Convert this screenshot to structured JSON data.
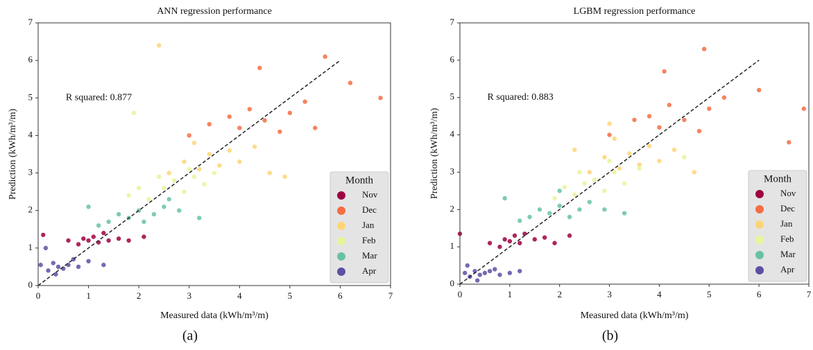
{
  "chart_data": [
    {
      "type": "scatter",
      "title": "ANN regression performance",
      "xlabel": "Measured data (kWh/m³/m)",
      "ylabel": "Prediction (kWh/m³/m)",
      "annotation": "R squared: 0.877",
      "legend_title": "Month",
      "caption": "(a)",
      "legend": "lower right",
      "xlim": [
        0,
        7
      ],
      "ylim": [
        0,
        7
      ],
      "xticks": [
        0,
        1,
        2,
        3,
        4,
        5,
        6,
        7
      ],
      "yticks": [
        0,
        1,
        2,
        3,
        4,
        5,
        6,
        7
      ],
      "reference_line": {
        "x": [
          0,
          6
        ],
        "y": [
          0,
          6
        ]
      },
      "series": [
        {
          "name": "Nov",
          "color": "#9e0142",
          "x": [
            0.6,
            0.8,
            0.9,
            1.0,
            1.1,
            1.2,
            1.3,
            1.4,
            1.6,
            1.8,
            2.1,
            0.1
          ],
          "y": [
            1.2,
            1.1,
            1.25,
            1.2,
            1.3,
            1.15,
            1.4,
            1.2,
            1.25,
            1.2,
            1.3,
            1.35
          ]
        },
        {
          "name": "Dec",
          "color": "#f46d43",
          "x": [
            3.0,
            3.4,
            3.8,
            4.0,
            4.2,
            4.5,
            4.8,
            5.0,
            5.3,
            5.7,
            6.2,
            6.8,
            4.4,
            5.5
          ],
          "y": [
            4.0,
            4.3,
            4.5,
            4.2,
            4.7,
            4.4,
            4.1,
            4.6,
            4.9,
            6.1,
            5.4,
            5.0,
            5.8,
            4.2
          ]
        },
        {
          "name": "Jan",
          "color": "#fdd576",
          "x": [
            2.6,
            2.9,
            3.2,
            3.4,
            3.6,
            3.8,
            4.0,
            4.3,
            4.6,
            3.1,
            4.9,
            2.4
          ],
          "y": [
            3.0,
            3.3,
            3.1,
            3.5,
            3.2,
            3.6,
            3.3,
            3.7,
            3.0,
            3.8,
            2.9,
            6.4
          ]
        },
        {
          "name": "Feb",
          "color": "#e6f598",
          "x": [
            1.8,
            2.0,
            2.2,
            2.5,
            2.7,
            2.9,
            3.1,
            3.3,
            3.5,
            2.4,
            3.0,
            1.9
          ],
          "y": [
            2.4,
            2.6,
            2.3,
            2.6,
            2.8,
            2.5,
            2.9,
            2.7,
            3.0,
            2.9,
            3.1,
            4.6
          ]
        },
        {
          "name": "Mar",
          "color": "#66c2a5",
          "x": [
            1.2,
            1.4,
            1.6,
            1.8,
            2.0,
            2.1,
            2.3,
            2.5,
            2.8,
            3.2,
            1.0,
            2.6
          ],
          "y": [
            1.6,
            1.7,
            1.9,
            1.8,
            2.0,
            1.7,
            1.9,
            2.1,
            2.0,
            1.8,
            2.1,
            2.3
          ]
        },
        {
          "name": "Apr",
          "color": "#5e4fa2",
          "x": [
            0.05,
            0.2,
            0.3,
            0.4,
            0.5,
            0.6,
            0.7,
            0.8,
            1.0,
            1.3,
            0.15,
            0.35
          ],
          "y": [
            0.55,
            0.4,
            0.6,
            0.5,
            0.45,
            0.55,
            0.7,
            0.5,
            0.65,
            0.55,
            1.0,
            0.3
          ]
        }
      ]
    },
    {
      "type": "scatter",
      "title": "LGBM regression performance",
      "xlabel": "Measured data (kWh/m³/m)",
      "ylabel": "Prediction (kWh/m³/m)",
      "annotation": "R squared: 0.883",
      "legend_title": "Month",
      "caption": "(b)",
      "legend": "lower right",
      "xlim": [
        0,
        7
      ],
      "ylim": [
        0,
        7
      ],
      "xticks": [
        0,
        1,
        2,
        3,
        4,
        5,
        6,
        7
      ],
      "yticks": [
        0,
        1,
        2,
        3,
        4,
        5,
        6,
        7
      ],
      "reference_line": {
        "x": [
          0,
          6
        ],
        "y": [
          0,
          6
        ]
      },
      "series": [
        {
          "name": "Nov",
          "color": "#9e0142",
          "x": [
            0.6,
            0.8,
            0.9,
            1.0,
            1.1,
            1.2,
            1.3,
            1.5,
            1.7,
            1.9,
            2.2,
            0.0
          ],
          "y": [
            1.1,
            1.0,
            1.2,
            1.15,
            1.3,
            1.1,
            1.35,
            1.2,
            1.25,
            1.1,
            1.3,
            1.35
          ]
        },
        {
          "name": "Dec",
          "color": "#f46d43",
          "x": [
            3.0,
            3.5,
            3.8,
            4.0,
            4.2,
            4.5,
            4.8,
            5.0,
            5.3,
            4.9,
            6.0,
            6.9,
            4.1,
            6.6
          ],
          "y": [
            4.0,
            4.4,
            4.5,
            4.2,
            4.8,
            4.4,
            4.1,
            4.7,
            5.0,
            6.3,
            5.2,
            4.7,
            5.7,
            3.8
          ]
        },
        {
          "name": "Jan",
          "color": "#fdd576",
          "x": [
            2.6,
            2.9,
            3.2,
            3.4,
            3.6,
            3.8,
            4.0,
            4.3,
            4.7,
            3.1,
            2.3,
            3.0
          ],
          "y": [
            3.0,
            3.4,
            3.1,
            3.5,
            3.2,
            3.7,
            3.3,
            3.6,
            3.0,
            3.9,
            3.6,
            4.3
          ]
        },
        {
          "name": "Feb",
          "color": "#e6f598",
          "x": [
            1.9,
            2.1,
            2.3,
            2.5,
            2.7,
            2.9,
            3.1,
            3.3,
            3.6,
            2.4,
            3.0,
            4.5
          ],
          "y": [
            2.3,
            2.6,
            2.4,
            2.7,
            2.8,
            2.5,
            3.0,
            2.7,
            3.1,
            3.0,
            3.3,
            3.4
          ]
        },
        {
          "name": "Mar",
          "color": "#66c2a5",
          "x": [
            1.2,
            1.4,
            1.6,
            1.8,
            2.0,
            2.2,
            2.4,
            2.6,
            2.9,
            3.3,
            0.9,
            2.0
          ],
          "y": [
            1.7,
            1.8,
            2.0,
            1.9,
            2.1,
            1.8,
            2.0,
            2.2,
            2.0,
            1.9,
            2.3,
            2.5
          ]
        },
        {
          "name": "Apr",
          "color": "#5e4fa2",
          "x": [
            0.1,
            0.2,
            0.3,
            0.4,
            0.5,
            0.6,
            0.7,
            0.8,
            1.0,
            1.2,
            0.15,
            0.35
          ],
          "y": [
            0.3,
            0.2,
            0.35,
            0.25,
            0.3,
            0.35,
            0.4,
            0.25,
            0.3,
            0.35,
            0.5,
            0.1
          ]
        }
      ]
    }
  ]
}
